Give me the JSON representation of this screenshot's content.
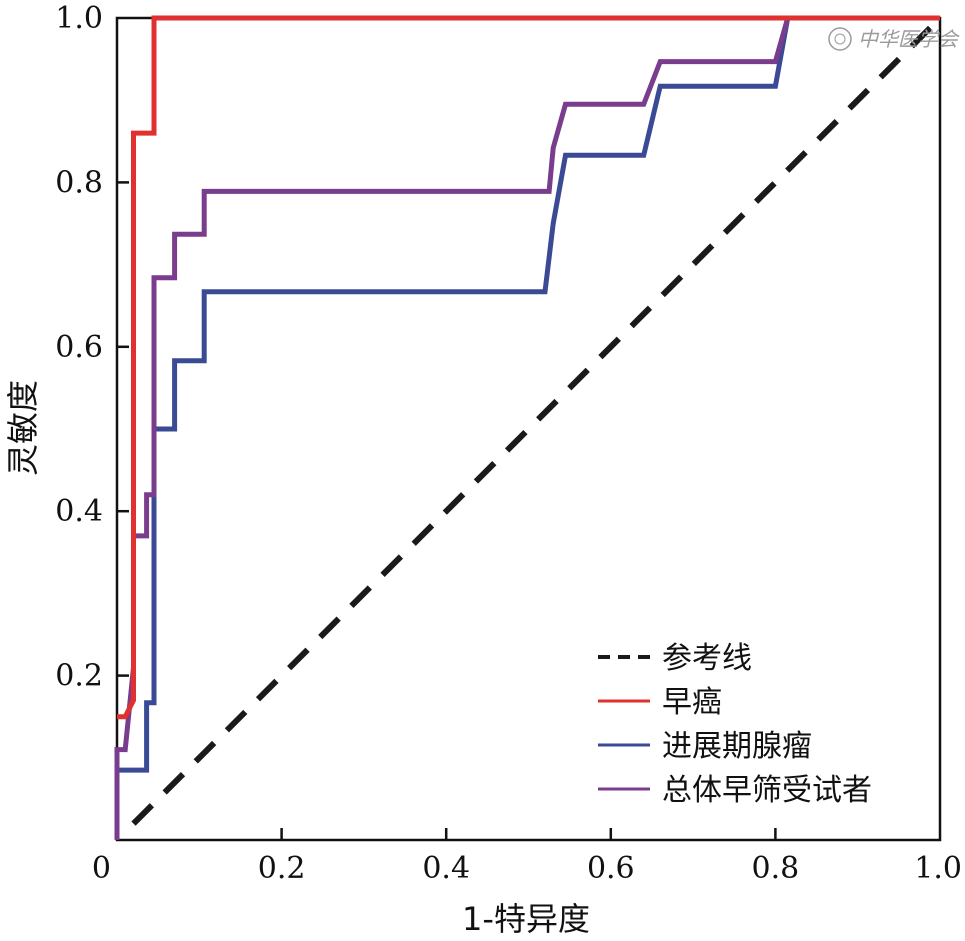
{
  "chart_data": {
    "type": "line",
    "title": "",
    "xlabel": "1-特异度",
    "ylabel": "灵敏度",
    "xlim": [
      0,
      1
    ],
    "ylim": [
      0,
      1
    ],
    "xticks": [
      {
        "value": 0,
        "label": "0"
      },
      {
        "value": 0.2,
        "label": "0.2"
      },
      {
        "value": 0.4,
        "label": "0.4"
      },
      {
        "value": 0.6,
        "label": "0.6"
      },
      {
        "value": 0.8,
        "label": "0.8"
      },
      {
        "value": 1.0,
        "label": "1.0"
      }
    ],
    "yticks": [
      {
        "value": 0.2,
        "label": "0.2"
      },
      {
        "value": 0.4,
        "label": "0.4"
      },
      {
        "value": 0.6,
        "label": "0.6"
      },
      {
        "value": 0.8,
        "label": "0.8"
      },
      {
        "value": 1.0,
        "label": "1.0"
      }
    ],
    "legend_position": "bottom-right",
    "series": [
      {
        "name": "参考线",
        "color": "#1a1a1a",
        "style": "dashed",
        "points": [
          [
            0.02,
            0.02
          ],
          [
            1.0,
            1.0
          ]
        ]
      },
      {
        "name": "早癌",
        "color": "#e03030",
        "style": "solid",
        "points": [
          [
            0.0,
            0.15
          ],
          [
            0.01,
            0.15
          ],
          [
            0.02,
            0.17
          ],
          [
            0.02,
            0.42
          ],
          [
            0.02,
            0.86
          ],
          [
            0.045,
            0.86
          ],
          [
            0.045,
            1.0
          ],
          [
            1.0,
            1.0
          ]
        ]
      },
      {
        "name": "进展期腺瘤",
        "color": "#3a4a94",
        "style": "solid",
        "points": [
          [
            0.0,
            0.0
          ],
          [
            0.0,
            0.085
          ],
          [
            0.036,
            0.085
          ],
          [
            0.036,
            0.167
          ],
          [
            0.045,
            0.167
          ],
          [
            0.045,
            0.5
          ],
          [
            0.07,
            0.5
          ],
          [
            0.07,
            0.583
          ],
          [
            0.106,
            0.583
          ],
          [
            0.106,
            0.667
          ],
          [
            0.52,
            0.667
          ],
          [
            0.53,
            0.75
          ],
          [
            0.545,
            0.833
          ],
          [
            0.64,
            0.833
          ],
          [
            0.66,
            0.917
          ],
          [
            0.8,
            0.917
          ],
          [
            0.815,
            1.0
          ],
          [
            1.0,
            1.0
          ]
        ]
      },
      {
        "name": "总体早筛受试者",
        "color": "#7a3c8c",
        "style": "solid",
        "points": [
          [
            0.0,
            0.0
          ],
          [
            0.0,
            0.11
          ],
          [
            0.01,
            0.11
          ],
          [
            0.02,
            0.21
          ],
          [
            0.02,
            0.37
          ],
          [
            0.036,
            0.37
          ],
          [
            0.036,
            0.42
          ],
          [
            0.045,
            0.42
          ],
          [
            0.045,
            0.684
          ],
          [
            0.07,
            0.684
          ],
          [
            0.07,
            0.737
          ],
          [
            0.106,
            0.737
          ],
          [
            0.106,
            0.789
          ],
          [
            0.525,
            0.789
          ],
          [
            0.53,
            0.842
          ],
          [
            0.545,
            0.895
          ],
          [
            0.64,
            0.895
          ],
          [
            0.66,
            0.947
          ],
          [
            0.8,
            0.947
          ],
          [
            0.815,
            1.0
          ],
          [
            1.0,
            1.0
          ]
        ]
      }
    ]
  },
  "watermark": "中华医学会"
}
